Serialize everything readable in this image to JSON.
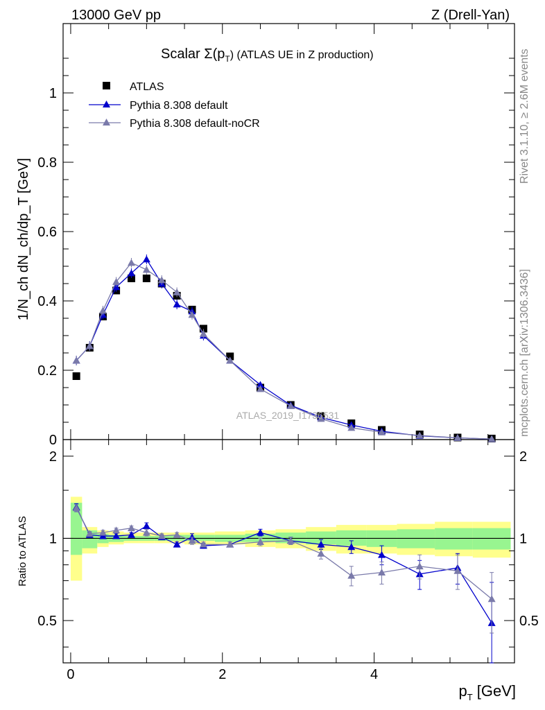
{
  "header": {
    "left": "13000 GeV pp",
    "right": "Z (Drell-Yan)"
  },
  "side_text": {
    "top": "Rivet 3.1.10, ≥ 2.6M events",
    "bottom": "mcplots.cern.ch [arXiv:1306.3436]"
  },
  "watermark": "ATLAS_2019_I1736531",
  "chart_data": [
    {
      "type": "scatter",
      "title_main": "Scalar Σ(p",
      "title_sub": "T",
      "title_tail": ") (ATLAS UE in Z production)",
      "ylabel": "1/N_ch dN_ch/dp_T [GeV]",
      "ylim": [
        0,
        1.2
      ],
      "y_ticks": [
        "0",
        "0.2",
        "0.4",
        "0.6",
        "0.8",
        "1"
      ],
      "legend_position": "top-left",
      "x": [
        0.075,
        0.25,
        0.425,
        0.6,
        0.8,
        1.0,
        1.2,
        1.4,
        1.6,
        1.75,
        2.1,
        2.5,
        2.9,
        3.3,
        3.7,
        4.1,
        4.6,
        5.1,
        5.55
      ],
      "series": [
        {
          "name": "ATLAS",
          "color": "#000000",
          "marker": "square",
          "values": [
            0.183,
            0.265,
            0.355,
            0.43,
            0.465,
            0.465,
            0.45,
            0.415,
            0.375,
            0.32,
            0.24,
            0.15,
            0.1,
            0.068,
            0.047,
            0.028,
            0.015,
            0.006,
            0.003
          ]
        },
        {
          "name": "Pythia 8.308 default",
          "color": "#0000cc",
          "marker": "triangle",
          "values": [
            0.228,
            0.27,
            0.36,
            0.44,
            0.48,
            0.52,
            0.45,
            0.39,
            0.37,
            0.3,
            0.228,
            0.158,
            0.099,
            0.064,
            0.042,
            0.024,
            0.011,
            0.005,
            0.0015
          ]
        },
        {
          "name": "Pythia 8.308 default-noCR",
          "color": "#7a7aaa",
          "marker": "triangle",
          "values": [
            0.228,
            0.27,
            0.372,
            0.455,
            0.51,
            0.49,
            0.46,
            0.425,
            0.36,
            0.305,
            0.228,
            0.146,
            0.097,
            0.06,
            0.034,
            0.021,
            0.012,
            0.005,
            0.0018
          ]
        }
      ]
    },
    {
      "type": "scatter",
      "ylabel": "Ratio to ATLAS",
      "xlabel_main": "p",
      "xlabel_sub": "T",
      "xlabel_tail": " [GeV]",
      "ylim": [
        0.35,
        2.3
      ],
      "xlim": [
        -0.1,
        5.85
      ],
      "y_ticks": [
        "0.5",
        "1",
        "2"
      ],
      "x_ticks": [
        "0",
        "2",
        "4"
      ],
      "bin_edges": [
        0,
        0.15,
        0.35,
        0.5,
        0.7,
        0.9,
        1.1,
        1.3,
        1.5,
        1.7,
        1.9,
        2.3,
        2.7,
        3.1,
        3.5,
        3.9,
        4.3,
        4.8,
        5.3,
        5.8
      ],
      "band_yellow": [
        [
          0.7,
          1.42
        ],
        [
          0.88,
          1.1
        ],
        [
          0.93,
          1.07
        ],
        [
          0.95,
          1.06
        ],
        [
          0.96,
          1.05
        ],
        [
          0.96,
          1.05
        ],
        [
          0.96,
          1.05
        ],
        [
          0.96,
          1.05
        ],
        [
          0.95,
          1.05
        ],
        [
          0.95,
          1.05
        ],
        [
          0.95,
          1.06
        ],
        [
          0.93,
          1.07
        ],
        [
          0.92,
          1.08
        ],
        [
          0.9,
          1.1
        ],
        [
          0.88,
          1.12
        ],
        [
          0.88,
          1.12
        ],
        [
          0.87,
          1.13
        ],
        [
          0.86,
          1.15
        ],
        [
          0.85,
          1.15
        ]
      ],
      "band_green": [
        [
          0.87,
          1.35
        ],
        [
          0.92,
          1.07
        ],
        [
          0.96,
          1.04
        ],
        [
          0.97,
          1.03
        ],
        [
          0.98,
          1.02
        ],
        [
          0.98,
          1.02
        ],
        [
          0.98,
          1.02
        ],
        [
          0.98,
          1.03
        ],
        [
          0.98,
          1.03
        ],
        [
          0.98,
          1.03
        ],
        [
          0.97,
          1.03
        ],
        [
          0.97,
          1.04
        ],
        [
          0.96,
          1.05
        ],
        [
          0.95,
          1.06
        ],
        [
          0.94,
          1.07
        ],
        [
          0.93,
          1.07
        ],
        [
          0.92,
          1.08
        ],
        [
          0.91,
          1.09
        ],
        [
          0.91,
          1.09
        ]
      ],
      "series": [
        {
          "name": "Pythia 8.308 default",
          "color": "#0000cc",
          "values": [
            1.3,
            1.03,
            1.02,
            1.02,
            1.03,
            1.11,
            1.01,
            0.95,
            1.01,
            0.94,
            0.95,
            1.05,
            0.98,
            0.95,
            0.93,
            0.87,
            0.74,
            0.78,
            0.49
          ],
          "errors": [
            0.04,
            0.02,
            0.02,
            0.02,
            0.02,
            0.03,
            0.02,
            0.02,
            0.03,
            0.02,
            0.02,
            0.03,
            0.03,
            0.04,
            0.05,
            0.07,
            0.09,
            0.1,
            0.2
          ]
        },
        {
          "name": "Pythia 8.308 default-noCR",
          "color": "#7a7aaa",
          "values": [
            1.29,
            1.04,
            1.05,
            1.07,
            1.09,
            1.05,
            1.02,
            1.03,
            0.98,
            0.95,
            0.95,
            0.97,
            0.98,
            0.88,
            0.73,
            0.75,
            0.79,
            0.76,
            0.6
          ],
          "errors": [
            0.04,
            0.02,
            0.02,
            0.02,
            0.02,
            0.03,
            0.02,
            0.02,
            0.03,
            0.02,
            0.02,
            0.03,
            0.03,
            0.04,
            0.06,
            0.07,
            0.08,
            0.11,
            0.15
          ]
        }
      ]
    }
  ]
}
